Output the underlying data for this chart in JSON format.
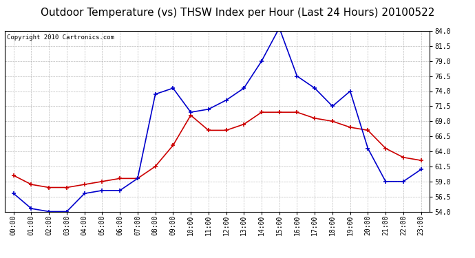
{
  "title": "Outdoor Temperature (vs) THSW Index per Hour (Last 24 Hours) 20100522",
  "copyright": "Copyright 2010 Cartronics.com",
  "hours": [
    "00:00",
    "01:00",
    "02:00",
    "03:00",
    "04:00",
    "05:00",
    "06:00",
    "07:00",
    "08:00",
    "09:00",
    "10:00",
    "11:00",
    "12:00",
    "13:00",
    "14:00",
    "15:00",
    "16:00",
    "17:00",
    "18:00",
    "19:00",
    "20:00",
    "21:00",
    "22:00",
    "23:00"
  ],
  "temp": [
    60.0,
    58.5,
    58.0,
    58.0,
    58.5,
    59.0,
    59.5,
    59.5,
    61.5,
    65.0,
    70.0,
    67.5,
    67.5,
    68.5,
    70.5,
    70.5,
    70.5,
    69.5,
    69.0,
    68.0,
    67.5,
    64.5,
    63.0,
    62.5
  ],
  "thsw": [
    57.0,
    54.5,
    54.0,
    54.0,
    57.0,
    57.5,
    57.5,
    59.5,
    73.5,
    74.5,
    70.5,
    71.0,
    72.5,
    74.5,
    79.0,
    84.5,
    76.5,
    74.5,
    71.5,
    74.0,
    64.5,
    59.0,
    59.0,
    61.0
  ],
  "temp_color": "#cc0000",
  "thsw_color": "#0000cc",
  "ylim_min": 54.0,
  "ylim_max": 84.0,
  "yticks": [
    54.0,
    56.5,
    59.0,
    61.5,
    64.0,
    66.5,
    69.0,
    71.5,
    74.0,
    76.5,
    79.0,
    81.5,
    84.0
  ],
  "background_color": "#ffffff",
  "grid_color": "#aaaaaa",
  "title_fontsize": 11,
  "copyright_fontsize": 6.5,
  "tick_fontsize": 7,
  "marker": "+"
}
